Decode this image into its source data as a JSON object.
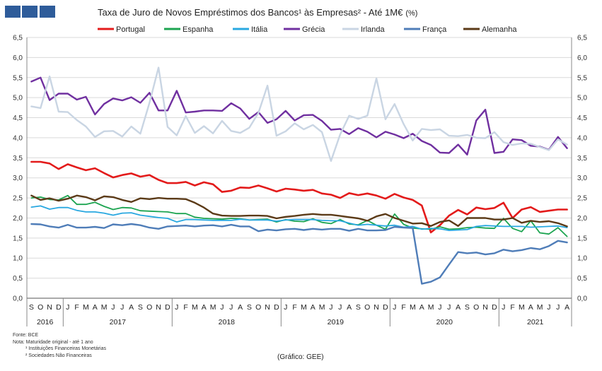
{
  "header": {
    "title": "Taxa de Juro de Novos Empréstimos dos Bancos¹ às Empresas² - Até 1M€",
    "title_unit": "(%)",
    "logo_colors": [
      "#2e5c9a",
      "#2e5c9a",
      "#2e5c9a"
    ]
  },
  "footer": {
    "source": "Fonte: BCE",
    "note": "Nota: Maturidade original - até 1 ano",
    "note1": "¹ Instituições Financeiras Monetárias",
    "note2": "² Sociedades Não Financeiras",
    "credit": "(Gráfico: GEE)"
  },
  "chart_data": {
    "type": "line",
    "title": "Taxa de Juro de Novos Empréstimos dos Bancos¹ às Empresas² - Até 1M€ (%)",
    "ylim": [
      0,
      6.5
    ],
    "yticks": [
      "0,0",
      "0,5",
      "1,0",
      "1,5",
      "2,0",
      "2,5",
      "3,0",
      "3,5",
      "4,0",
      "4,5",
      "5,0",
      "5,5",
      "6,0",
      "6,5"
    ],
    "grid": true,
    "legend": "top",
    "x": [
      "S",
      "O",
      "N",
      "D",
      "J",
      "F",
      "M",
      "A",
      "M",
      "J",
      "J",
      "A",
      "S",
      "O",
      "N",
      "D",
      "J",
      "F",
      "M",
      "A",
      "M",
      "J",
      "J",
      "A",
      "S",
      "O",
      "N",
      "D",
      "J",
      "F",
      "M",
      "A",
      "M",
      "J",
      "J",
      "A",
      "S",
      "O",
      "N",
      "D",
      "J",
      "F",
      "M",
      "A",
      "M",
      "J",
      "J",
      "A",
      "S",
      "O",
      "N",
      "D",
      "J",
      "F",
      "M",
      "A",
      "M",
      "J",
      "J",
      "A"
    ],
    "years": [
      {
        "label": "2016",
        "start": 0,
        "end": 4
      },
      {
        "label": "2017",
        "start": 4,
        "end": 16
      },
      {
        "label": "2018",
        "start": 16,
        "end": 28
      },
      {
        "label": "2019",
        "start": 28,
        "end": 40
      },
      {
        "label": "2020",
        "start": 40,
        "end": 52
      },
      {
        "label": "2021",
        "start": 52,
        "end": 60
      }
    ],
    "series": [
      {
        "name": "Portugal",
        "color": "#e31b1b",
        "width": 2.6,
        "values": [
          3.4,
          3.4,
          3.36,
          3.22,
          3.34,
          3.26,
          3.19,
          3.24,
          3.12,
          3.01,
          3.07,
          3.11,
          3.03,
          3.07,
          2.95,
          2.87,
          2.87,
          2.9,
          2.81,
          2.89,
          2.84,
          2.65,
          2.68,
          2.76,
          2.75,
          2.81,
          2.74,
          2.66,
          2.73,
          2.71,
          2.68,
          2.7,
          2.61,
          2.58,
          2.5,
          2.62,
          2.57,
          2.61,
          2.56,
          2.48,
          2.6,
          2.51,
          2.45,
          2.31,
          1.64,
          1.82,
          2.06,
          2.2,
          2.09,
          2.26,
          2.22,
          2.25,
          2.38,
          2.0,
          2.21,
          2.27,
          2.15,
          2.18,
          2.21,
          2.21
        ]
      },
      {
        "name": "Espanha",
        "color": "#1ca450",
        "width": 1.8,
        "values": [
          2.5,
          2.52,
          2.46,
          2.45,
          2.56,
          2.34,
          2.34,
          2.39,
          2.29,
          2.21,
          2.26,
          2.25,
          2.18,
          2.17,
          2.16,
          2.15,
          2.11,
          2.11,
          2.02,
          1.99,
          1.98,
          1.97,
          1.99,
          1.98,
          1.95,
          1.96,
          1.97,
          1.9,
          1.96,
          1.92,
          1.91,
          1.98,
          1.89,
          1.86,
          1.96,
          1.85,
          1.83,
          1.94,
          1.82,
          1.72,
          2.1,
          1.84,
          1.75,
          1.73,
          1.72,
          1.78,
          1.72,
          1.73,
          1.76,
          1.77,
          1.75,
          1.74,
          1.99,
          1.74,
          1.66,
          1.93,
          1.63,
          1.6,
          1.76,
          1.54
        ]
      },
      {
        "name": "Itália",
        "color": "#29a8e0",
        "width": 1.8,
        "values": [
          2.27,
          2.3,
          2.22,
          2.26,
          2.26,
          2.19,
          2.15,
          2.15,
          2.12,
          2.07,
          2.12,
          2.13,
          2.07,
          2.04,
          2.01,
          1.99,
          1.9,
          1.96,
          1.96,
          1.95,
          1.94,
          1.94,
          1.94,
          1.97,
          1.95,
          1.95,
          1.95,
          1.92,
          1.95,
          1.96,
          1.96,
          1.96,
          1.94,
          1.93,
          1.93,
          1.87,
          1.82,
          1.84,
          1.82,
          1.8,
          1.82,
          1.77,
          1.79,
          1.72,
          1.74,
          1.73,
          1.69,
          1.7,
          1.71,
          1.79,
          1.81,
          1.8,
          1.79,
          1.79,
          1.79,
          1.77,
          1.78,
          1.79,
          1.8,
          1.76
        ]
      },
      {
        "name": "Grécia",
        "color": "#7030a0",
        "width": 2.4,
        "values": [
          5.4,
          5.5,
          4.94,
          5.1,
          5.1,
          4.95,
          5.02,
          4.58,
          4.84,
          4.98,
          4.93,
          5.01,
          4.87,
          5.12,
          4.68,
          4.68,
          5.17,
          4.63,
          4.65,
          4.68,
          4.68,
          4.67,
          4.86,
          4.73,
          4.47,
          4.64,
          4.37,
          4.46,
          4.67,
          4.43,
          4.56,
          4.57,
          4.42,
          4.2,
          4.22,
          4.09,
          4.24,
          4.15,
          4.01,
          4.15,
          4.08,
          3.99,
          4.1,
          3.92,
          3.82,
          3.63,
          3.62,
          3.83,
          3.58,
          4.43,
          4.7,
          3.62,
          3.65,
          3.96,
          3.94,
          3.8,
          3.78,
          3.7,
          4.02,
          3.74
        ]
      },
      {
        "name": "Irlanda",
        "color": "#c9d5e3",
        "width": 2.4,
        "values": [
          4.78,
          4.74,
          5.53,
          4.65,
          4.64,
          4.44,
          4.28,
          4.02,
          4.16,
          4.17,
          4.03,
          4.28,
          4.1,
          4.87,
          5.75,
          4.27,
          4.06,
          4.54,
          4.12,
          4.29,
          4.11,
          4.42,
          4.17,
          4.12,
          4.25,
          4.62,
          5.3,
          4.05,
          4.16,
          4.36,
          4.21,
          4.32,
          4.14,
          3.42,
          4.08,
          4.55,
          4.47,
          4.55,
          5.48,
          4.46,
          4.84,
          4.34,
          3.93,
          4.22,
          4.19,
          4.21,
          4.05,
          4.04,
          4.07,
          4.0,
          3.99,
          4.14,
          3.89,
          3.82,
          3.86,
          3.85,
          3.77,
          3.69,
          3.96,
          3.83
        ]
      },
      {
        "name": "França",
        "color": "#4f7db8",
        "width": 2.4,
        "values": [
          1.85,
          1.84,
          1.79,
          1.76,
          1.83,
          1.76,
          1.76,
          1.78,
          1.75,
          1.84,
          1.82,
          1.85,
          1.82,
          1.76,
          1.73,
          1.79,
          1.8,
          1.81,
          1.79,
          1.81,
          1.82,
          1.79,
          1.83,
          1.79,
          1.79,
          1.67,
          1.71,
          1.69,
          1.72,
          1.73,
          1.7,
          1.73,
          1.71,
          1.73,
          1.73,
          1.68,
          1.73,
          1.69,
          1.69,
          1.7,
          1.78,
          1.76,
          1.75,
          0.36,
          0.41,
          0.52,
          0.84,
          1.15,
          1.12,
          1.14,
          1.09,
          1.12,
          1.21,
          1.17,
          1.2,
          1.25,
          1.22,
          1.3,
          1.43,
          1.39
        ]
      },
      {
        "name": "Alemanha",
        "color": "#5b3a17",
        "width": 2.4,
        "values": [
          2.56,
          2.45,
          2.49,
          2.43,
          2.48,
          2.56,
          2.52,
          2.44,
          2.54,
          2.52,
          2.45,
          2.4,
          2.49,
          2.47,
          2.5,
          2.48,
          2.48,
          2.47,
          2.38,
          2.26,
          2.11,
          2.06,
          2.05,
          2.05,
          2.06,
          2.06,
          2.05,
          1.99,
          2.03,
          2.05,
          2.08,
          2.1,
          2.08,
          2.08,
          2.05,
          2.02,
          1.99,
          1.93,
          2.04,
          2.1,
          2.0,
          1.93,
          1.86,
          1.87,
          1.8,
          1.9,
          1.94,
          1.8,
          2.0,
          2.0,
          2.0,
          1.96,
          1.96,
          2.0,
          1.88,
          1.93,
          1.9,
          1.92,
          1.87,
          1.79
        ]
      }
    ]
  }
}
